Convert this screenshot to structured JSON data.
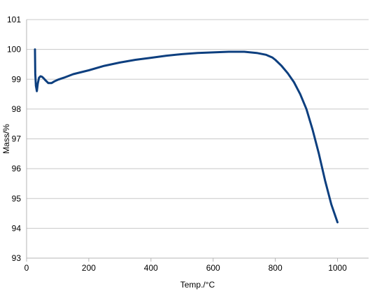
{
  "chart_data": {
    "type": "line",
    "title": "",
    "xlabel": "Temp./°C",
    "ylabel": "Mass/%",
    "xlim": [
      0,
      1100
    ],
    "ylim": [
      93,
      101
    ],
    "xticks": [
      0,
      200,
      400,
      600,
      800,
      1000
    ],
    "yticks": [
      93,
      94,
      95,
      96,
      97,
      98,
      99,
      100,
      101
    ],
    "grid": "horizontal",
    "legend": "none",
    "colors": {
      "line": "#0d3f7f",
      "grid": "#c8c8c8",
      "axis": "#b4b4b4"
    },
    "series": [
      {
        "x": [
          27,
          28,
          30,
          33,
          36,
          40,
          45,
          50,
          55,
          60,
          70,
          80,
          90,
          100,
          120,
          150,
          200,
          250,
          300,
          350,
          400,
          450,
          500,
          550,
          600,
          650,
          700,
          740,
          770,
          790,
          800,
          820,
          840,
          860,
          880,
          900,
          920,
          940,
          960,
          980,
          1000
        ],
        "y": [
          100.0,
          99.2,
          98.78,
          98.6,
          98.85,
          99.05,
          99.1,
          99.08,
          99.03,
          98.97,
          98.87,
          98.87,
          98.93,
          98.98,
          99.05,
          99.17,
          99.3,
          99.45,
          99.56,
          99.65,
          99.72,
          99.79,
          99.84,
          99.88,
          99.9,
          99.92,
          99.92,
          99.88,
          99.82,
          99.73,
          99.65,
          99.45,
          99.2,
          98.9,
          98.5,
          98.0,
          97.3,
          96.5,
          95.6,
          94.8,
          94.2
        ]
      }
    ]
  }
}
